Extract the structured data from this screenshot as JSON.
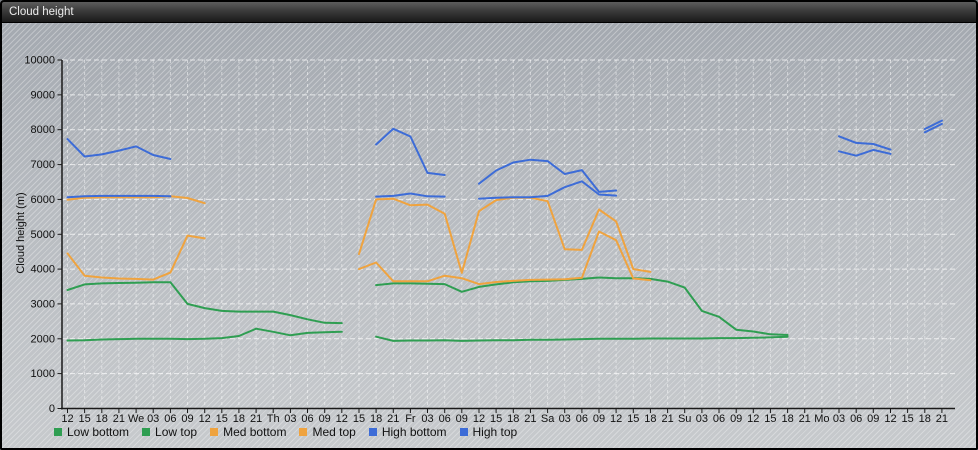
{
  "window": {
    "title": "Cloud height"
  },
  "chart_data": {
    "type": "line",
    "title": "Cloud height",
    "xlabel": "",
    "ylabel": "Cloud height (m)",
    "ylim": [
      0,
      10000
    ],
    "ytick_step": 1000,
    "grid": true,
    "legend_position": "bottom",
    "y_tick_labels": [
      "0",
      "1000",
      "2000",
      "3000",
      "4000",
      "5000",
      "6000",
      "7000",
      "8000",
      "9000",
      "10000"
    ],
    "x_labels": [
      "12",
      "15",
      "18",
      "21",
      "We",
      "03",
      "06",
      "09",
      "12",
      "15",
      "18",
      "21",
      "Th",
      "03",
      "06",
      "09",
      "12",
      "15",
      "18",
      "21",
      "Fr",
      "03",
      "06",
      "09",
      "12",
      "15",
      "18",
      "21",
      "Sa",
      "03",
      "06",
      "09",
      "12",
      "15",
      "18",
      "21",
      "Su",
      "03",
      "06",
      "09",
      "12",
      "15",
      "18",
      "21",
      "Mo",
      "03",
      "06",
      "09",
      "12",
      "15",
      "18",
      "21"
    ],
    "series": [
      {
        "name": "Low bottom",
        "color": "#2f9e52",
        "values": [
          1950,
          1960,
          1980,
          1990,
          2000,
          2000,
          2000,
          1990,
          2000,
          2020,
          2080,
          2290,
          2200,
          2100,
          2170,
          2190,
          2200,
          null,
          2060,
          1940,
          1950,
          1950,
          1960,
          1940,
          1950,
          1960,
          1960,
          1970,
          1970,
          1980,
          1990,
          2000,
          2000,
          2000,
          2010,
          2010,
          2010,
          2010,
          2020,
          2020,
          2030,
          2040,
          2060,
          null,
          null,
          null,
          null,
          null,
          null,
          null,
          null,
          null
        ]
      },
      {
        "name": "Low top",
        "color": "#2f9e52",
        "values": [
          3400,
          3560,
          3590,
          3600,
          3610,
          3620,
          3620,
          3000,
          2880,
          2800,
          2780,
          2780,
          2780,
          2680,
          2560,
          2460,
          2450,
          null,
          3540,
          3590,
          3590,
          3580,
          3570,
          3350,
          3490,
          3560,
          3620,
          3650,
          3660,
          3690,
          3720,
          3760,
          3740,
          3740,
          3720,
          3640,
          3470,
          2800,
          2630,
          2260,
          2210,
          2130,
          2110,
          null,
          null,
          null,
          null,
          null,
          null,
          null,
          null,
          null
        ]
      },
      {
        "name": "Med bottom",
        "color": "#efa33f",
        "values": [
          4450,
          3810,
          3760,
          3730,
          3720,
          3700,
          3900,
          4960,
          4880,
          null,
          null,
          null,
          null,
          null,
          null,
          null,
          null,
          4000,
          4190,
          3650,
          3650,
          3650,
          3810,
          3740,
          3570,
          3630,
          3660,
          3690,
          3700,
          3710,
          3750,
          5080,
          4830,
          3730,
          3680,
          null,
          null,
          null,
          null,
          null,
          null,
          null,
          null,
          null,
          null,
          null,
          null,
          null,
          null,
          null,
          null,
          null
        ]
      },
      {
        "name": "Med top",
        "color": "#efa33f",
        "values": [
          5990,
          6050,
          6060,
          6060,
          6060,
          6060,
          6090,
          6040,
          5890,
          null,
          null,
          null,
          null,
          null,
          null,
          null,
          null,
          4430,
          6000,
          6020,
          5830,
          5850,
          5590,
          3890,
          5660,
          5980,
          6050,
          6050,
          5950,
          4570,
          4550,
          5710,
          5370,
          4000,
          3920,
          null,
          null,
          null,
          null,
          null,
          null,
          null,
          null,
          null,
          null,
          null,
          null,
          null,
          null,
          null,
          null,
          null
        ]
      },
      {
        "name": "High bottom",
        "color": "#3d6cd7",
        "values": [
          6060,
          6090,
          6100,
          6100,
          6100,
          6100,
          6090,
          null,
          null,
          null,
          null,
          null,
          null,
          null,
          null,
          null,
          null,
          null,
          6080,
          6100,
          6170,
          6090,
          6080,
          null,
          6020,
          6050,
          6060,
          6060,
          6100,
          6350,
          6520,
          6140,
          6110,
          null,
          null,
          null,
          null,
          null,
          null,
          null,
          null,
          null,
          null,
          null,
          null,
          7380,
          7255,
          7420,
          7305,
          null,
          7925,
          8165
        ]
      },
      {
        "name": "High top",
        "color": "#3d6cd7",
        "values": [
          7730,
          7230,
          7290,
          7400,
          7520,
          7275,
          7160,
          null,
          null,
          null,
          null,
          null,
          null,
          null,
          null,
          null,
          null,
          null,
          7575,
          8025,
          7805,
          6760,
          6700,
          null,
          6450,
          6830,
          7060,
          7140,
          7100,
          6730,
          6840,
          6215,
          6255,
          null,
          null,
          null,
          null,
          null,
          null,
          null,
          null,
          null,
          null,
          null,
          null,
          7810,
          7620,
          7590,
          7430,
          null,
          8020,
          8260
        ]
      }
    ]
  }
}
